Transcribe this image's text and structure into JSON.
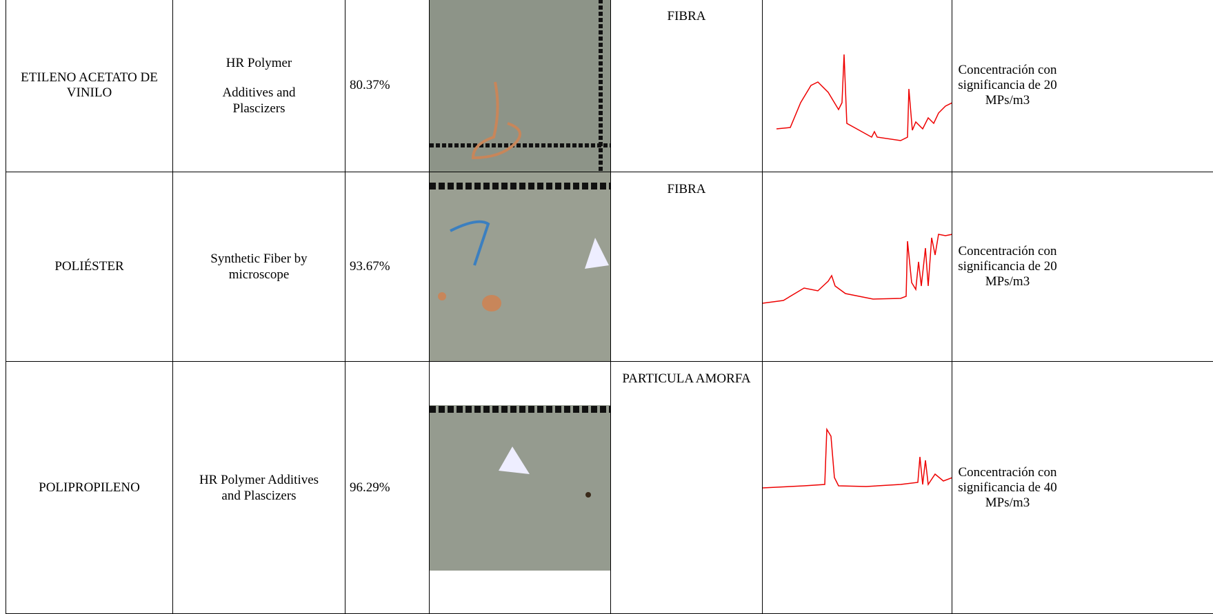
{
  "table": {
    "rows": [
      [
        "ETILENO ACETATO DE VINILO",
        "HR Polymer",
        "Additives and Plascizers",
        "80.37%",
        "FIBRA",
        "Concentración con significancia de 20 MPs/m3"
      ],
      [
        "POLIÉSTER",
        "Synthetic Fiber by microscope",
        "",
        "93.67%",
        "FIBRA",
        "Concentración con significancia de 20 MPs/m3"
      ],
      [
        "POLIPROPILENO",
        "HR Polymer Additives and Plascizers",
        "",
        "96.29%",
        "PARTICULA AMORFA",
        "Concentración con significancia de 40 MPs/m3"
      ]
    ]
  }
}
